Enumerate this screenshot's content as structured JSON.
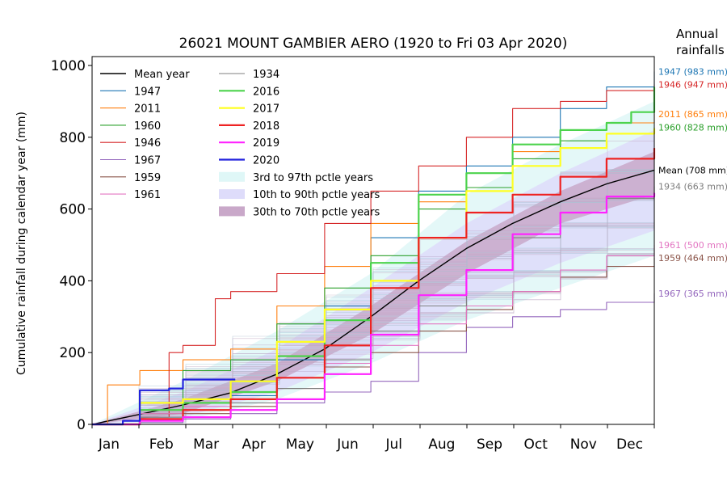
{
  "chart_data": {
    "type": "line",
    "title": "26021 MOUNT GAMBIER AERO  (1920 to Fri 03 Apr 2020)",
    "ylabel": "Cumulative rainfall during calendar year (mm)",
    "xlabel": "",
    "ylim": [
      0,
      1000
    ],
    "xlim": [
      0,
      365
    ],
    "yticks": [
      0,
      200,
      400,
      600,
      800,
      1000
    ],
    "month_labels": [
      "Jan",
      "Feb",
      "Mar",
      "Apr",
      "May",
      "Jun",
      "Jul",
      "Aug",
      "Sep",
      "Oct",
      "Nov",
      "Dec"
    ],
    "month_label_days": [
      11,
      45,
      74,
      105,
      135,
      166,
      196,
      227,
      258,
      288,
      319,
      349
    ],
    "annual_header": [
      "Annual",
      "rainfalls"
    ],
    "legend_position": "top-left",
    "bands": [
      {
        "name": "3rd to 97th pctle years",
        "color": "#dff7f7",
        "x": [
          0,
          59,
          120,
          181,
          243,
          304,
          365
        ],
        "low": [
          0,
          10,
          70,
          170,
          290,
          380,
          470
        ],
        "high": [
          0,
          120,
          260,
          420,
          640,
          780,
          900
        ]
      },
      {
        "name": "10th to 90th pctle years",
        "color": "#dedcfa",
        "x": [
          0,
          59,
          120,
          181,
          243,
          304,
          365
        ],
        "low": [
          0,
          20,
          90,
          200,
          340,
          450,
          540
        ],
        "high": [
          0,
          90,
          210,
          380,
          560,
          700,
          820
        ]
      },
      {
        "name": "30th to 70th pctle years",
        "color": "#c9a8c9",
        "x": [
          0,
          59,
          120,
          181,
          243,
          304,
          365
        ],
        "low": [
          0,
          30,
          120,
          250,
          420,
          560,
          640
        ],
        "high": [
          0,
          70,
          170,
          330,
          510,
          650,
          760
        ]
      }
    ],
    "series": [
      {
        "name": "Mean year",
        "color": "#000000",
        "width": 1.4,
        "x": [
          0,
          31,
          59,
          90,
          120,
          151,
          181,
          212,
          243,
          273,
          304,
          334,
          365
        ],
        "y": [
          0,
          28,
          54,
          88,
          140,
          210,
          300,
          400,
          490,
          560,
          620,
          670,
          708
        ]
      },
      {
        "name": "1947",
        "color": "#1f77b4",
        "width": 1.1,
        "x": [
          0,
          31,
          59,
          90,
          120,
          151,
          181,
          212,
          243,
          273,
          304,
          334,
          365
        ],
        "y": [
          0,
          20,
          40,
          80,
          180,
          330,
          520,
          650,
          720,
          800,
          880,
          940,
          983
        ]
      },
      {
        "name": "2011",
        "color": "#ff7f0e",
        "width": 1.1,
        "x": [
          0,
          10,
          31,
          59,
          90,
          120,
          151,
          181,
          212,
          243,
          273,
          304,
          334,
          365
        ],
        "y": [
          0,
          110,
          150,
          180,
          210,
          330,
          440,
          560,
          620,
          700,
          760,
          820,
          840,
          865
        ]
      },
      {
        "name": "1960",
        "color": "#2ca02c",
        "width": 1.1,
        "x": [
          0,
          31,
          59,
          90,
          120,
          151,
          181,
          212,
          243,
          273,
          304,
          334,
          365
        ],
        "y": [
          0,
          30,
          150,
          180,
          280,
          380,
          470,
          600,
          660,
          740,
          790,
          810,
          828
        ]
      },
      {
        "name": "1946",
        "color": "#d62728",
        "width": 1.1,
        "x": [
          0,
          31,
          50,
          59,
          80,
          90,
          120,
          151,
          181,
          212,
          243,
          273,
          304,
          334,
          365
        ],
        "y": [
          0,
          20,
          200,
          220,
          350,
          370,
          420,
          560,
          650,
          720,
          800,
          880,
          900,
          930,
          947
        ]
      },
      {
        "name": "1967",
        "color": "#9467bd",
        "width": 1.1,
        "x": [
          0,
          31,
          59,
          90,
          120,
          151,
          181,
          212,
          243,
          273,
          304,
          334,
          365
        ],
        "y": [
          0,
          5,
          15,
          30,
          60,
          90,
          120,
          200,
          270,
          300,
          320,
          340,
          365
        ]
      },
      {
        "name": "1959",
        "color": "#8c564b",
        "width": 1.1,
        "x": [
          0,
          31,
          59,
          90,
          120,
          151,
          181,
          212,
          243,
          273,
          304,
          334,
          365
        ],
        "y": [
          0,
          15,
          30,
          50,
          100,
          160,
          200,
          260,
          320,
          370,
          410,
          440,
          464
        ]
      },
      {
        "name": "1961",
        "color": "#e377c2",
        "width": 1.1,
        "x": [
          0,
          31,
          59,
          90,
          120,
          151,
          181,
          212,
          243,
          273,
          304,
          334,
          365
        ],
        "y": [
          0,
          30,
          50,
          90,
          130,
          170,
          220,
          280,
          330,
          370,
          430,
          470,
          500
        ]
      },
      {
        "name": "1934",
        "color": "#7f7f7f",
        "width": 1.1,
        "x": [
          0,
          31,
          59,
          90,
          120,
          151,
          181,
          212,
          243,
          273,
          304,
          334,
          365
        ],
        "y": [
          0,
          20,
          40,
          60,
          100,
          180,
          260,
          330,
          430,
          520,
          590,
          630,
          663
        ]
      },
      {
        "name": "2016",
        "color": "#4cd34c",
        "width": 2.2,
        "x": [
          0,
          31,
          59,
          90,
          120,
          151,
          181,
          212,
          243,
          273,
          304,
          334,
          350,
          365
        ],
        "y": [
          0,
          40,
          60,
          90,
          190,
          290,
          450,
          640,
          700,
          780,
          820,
          840,
          870,
          940
        ]
      },
      {
        "name": "2017",
        "color": "#ffff22",
        "width": 2.2,
        "x": [
          0,
          31,
          59,
          90,
          120,
          151,
          181,
          212,
          243,
          273,
          304,
          334,
          365
        ],
        "y": [
          0,
          60,
          70,
          120,
          230,
          320,
          400,
          520,
          650,
          720,
          770,
          810,
          825
        ]
      },
      {
        "name": "2018",
        "color": "#ee2222",
        "width": 2.2,
        "x": [
          0,
          31,
          59,
          90,
          120,
          151,
          181,
          212,
          243,
          273,
          304,
          334,
          365
        ],
        "y": [
          0,
          15,
          40,
          70,
          130,
          220,
          380,
          520,
          590,
          640,
          690,
          740,
          770
        ]
      },
      {
        "name": "2019",
        "color": "#ff22ff",
        "width": 2.2,
        "x": [
          0,
          31,
          59,
          90,
          120,
          151,
          181,
          212,
          243,
          273,
          304,
          334,
          365
        ],
        "y": [
          0,
          10,
          20,
          40,
          70,
          140,
          250,
          360,
          430,
          530,
          590,
          635,
          645
        ]
      },
      {
        "name": "2020",
        "color": "#2222dd",
        "width": 2.2,
        "x": [
          0,
          20,
          31,
          50,
          59,
          93
        ],
        "y": [
          0,
          10,
          95,
          100,
          125,
          125
        ]
      }
    ],
    "annual_labels": [
      {
        "text": "1947 (983 mm)",
        "color": "#1f77b4",
        "y": 983
      },
      {
        "text": "1946 (947 mm)",
        "color": "#d62728",
        "y": 947
      },
      {
        "text": "2011 (865 mm)",
        "color": "#ff7f0e",
        "y": 865
      },
      {
        "text": "1960 (828 mm)",
        "color": "#2ca02c",
        "y": 828
      },
      {
        "text": "Mean (708 mm)",
        "color": "#000000",
        "y": 708
      },
      {
        "text": "1934 (663 mm)",
        "color": "#7f7f7f",
        "y": 663
      },
      {
        "text": "1961 (500 mm)",
        "color": "#e377c2",
        "y": 500
      },
      {
        "text": "1959 (464 mm)",
        "color": "#8c564b",
        "y": 464
      },
      {
        "text": "1967 (365 mm)",
        "color": "#9467bd",
        "y": 365
      }
    ]
  }
}
